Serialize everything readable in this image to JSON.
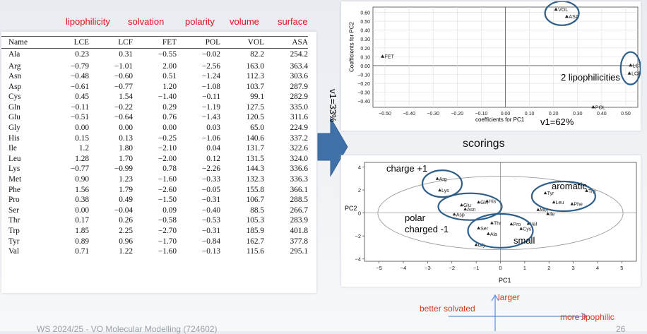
{
  "column_headers": [
    "lipophilicity",
    "solvation",
    "polarity",
    "volume",
    "surface"
  ],
  "table": {
    "columns": [
      "Name",
      "LCE",
      "LCF",
      "FET",
      "POL",
      "VOL",
      "ASA"
    ],
    "rows": [
      [
        "Ala",
        "0.23",
        "0.31",
        "−0.55",
        "−0.02",
        "82.2",
        "254.2"
      ],
      [
        "Arg",
        "−0.79",
        "−1.01",
        "2.00",
        "−2.56",
        "163.0",
        "363.4"
      ],
      [
        "Asn",
        "−0.48",
        "−0.60",
        "0.51",
        "−1.24",
        "112.3",
        "303.6"
      ],
      [
        "Asp",
        "−0.61",
        "−0.77",
        "1.20",
        "−1.08",
        "103.7",
        "287.9"
      ],
      [
        "Cys",
        "0.45",
        "1.54",
        "−1.40",
        "−0.11",
        "99.1",
        "282.9"
      ],
      [
        "Gln",
        "−0.11",
        "−0.22",
        "0.29",
        "−1.19",
        "127.5",
        "335.0"
      ],
      [
        "Glu",
        "−0.51",
        "−0.64",
        "0.76",
        "−1.43",
        "120.5",
        "311.6"
      ],
      [
        "Gly",
        "0.00",
        "0.00",
        "0.00",
        "0.03",
        "65.0",
        "224.9"
      ],
      [
        "His",
        "0.15",
        "0.13",
        "−0.25",
        "−1.06",
        "140.6",
        "337.2"
      ],
      [
        "Ile",
        "1.2",
        "1.80",
        "−2.10",
        "0.04",
        "131.7",
        "322.6"
      ],
      [
        "Leu",
        "1.28",
        "1.70",
        "−2.00",
        "0.12",
        "131.5",
        "324.0"
      ],
      [
        "Lys",
        "−0.77",
        "−0.99",
        "0.78",
        "−2.26",
        "144.3",
        "336.6"
      ],
      [
        "Met",
        "0.90",
        "1.23",
        "−1.60",
        "−0.33",
        "132.3",
        "336.3"
      ],
      [
        "Phe",
        "1.56",
        "1.79",
        "−2.60",
        "−0.05",
        "155.8",
        "366.1"
      ],
      [
        "Pro",
        "0.38",
        "0.49",
        "−1.50",
        "−0.31",
        "106.7",
        "288.5"
      ],
      [
        "Ser",
        "0.00",
        "−0.04",
        "0.09",
        "−0.40",
        "88.5",
        "266.7"
      ],
      [
        "Thr",
        "0.17",
        "0.26",
        "−0.58",
        "−0.53",
        "105.3",
        "283.9"
      ],
      [
        "Trp",
        "1.85",
        "2.25",
        "−2.70",
        "−0.31",
        "185.9",
        "401.8"
      ],
      [
        "Tyr",
        "0.89",
        "0.96",
        "−1.70",
        "−0.84",
        "162.7",
        "377.8"
      ],
      [
        "Val",
        "0.71",
        "1.22",
        "−1.60",
        "−0.13",
        "115.6",
        "295.1"
      ]
    ]
  },
  "loadings": {
    "ylabel": "Coefficients for PC2",
    "xlabel": "coefficients for PC1",
    "yticks": [
      "0.60",
      "0.50",
      "0.40",
      "0.30",
      "0.20",
      "0.10",
      "0.00",
      "−0.10",
      "−0.20",
      "−0.30",
      "−0.40"
    ],
    "xticks": [
      "−0.50",
      "−0.40",
      "−0.30",
      "−0.20",
      "−0.10",
      "0.00",
      "0.10",
      "0.20",
      "0.30",
      "0.40",
      "0.50"
    ],
    "points": [
      {
        "label": "VOL",
        "x": 0.21,
        "y": 0.635
      },
      {
        "label": "ASA",
        "x": 0.255,
        "y": 0.555
      },
      {
        "label": "FET",
        "x": -0.51,
        "y": 0.105
      },
      {
        "label": "LCE",
        "x": 0.52,
        "y": 0.005
      },
      {
        "label": "LCF",
        "x": 0.515,
        "y": -0.085
      },
      {
        "label": "POL",
        "x": 0.365,
        "y": -0.465
      }
    ],
    "annotation": "2 lipophilicities",
    "v1": "v1=62%",
    "v2": "v1=33%"
  },
  "scores": {
    "title": "scorings",
    "ylabel": "PC2",
    "xlabel": "PC1",
    "yticks": [
      "4",
      "2",
      "0",
      "−2",
      "−4"
    ],
    "xticks": [
      "−5",
      "−4",
      "−3",
      "−2",
      "−1",
      "0",
      "1",
      "2",
      "3",
      "4",
      "5"
    ],
    "points": [
      {
        "label": "Arg",
        "x": -2.6,
        "y": 3.0
      },
      {
        "label": "Lys",
        "x": -2.5,
        "y": 2.0
      },
      {
        "label": "Glu",
        "x": -1.6,
        "y": 0.7
      },
      {
        "label": "Gln",
        "x": -0.9,
        "y": 0.95
      },
      {
        "label": "His",
        "x": -0.55,
        "y": 1.05
      },
      {
        "label": "Asn",
        "x": -1.45,
        "y": 0.35
      },
      {
        "label": "Asp",
        "x": -1.9,
        "y": -0.1
      },
      {
        "label": "Thr",
        "x": -0.35,
        "y": -0.85
      },
      {
        "label": "Pro",
        "x": 0.45,
        "y": -0.95
      },
      {
        "label": "Val",
        "x": 1.15,
        "y": -0.9
      },
      {
        "label": "Ser",
        "x": -0.9,
        "y": -1.3
      },
      {
        "label": "Cys",
        "x": 0.85,
        "y": -1.35
      },
      {
        "label": "Ala",
        "x": -0.5,
        "y": -1.8
      },
      {
        "label": "Gly",
        "x": -1.0,
        "y": -2.75
      },
      {
        "label": "Tyr",
        "x": 1.85,
        "y": 1.75
      },
      {
        "label": "Trp",
        "x": 3.55,
        "y": 1.95
      },
      {
        "label": "Leu",
        "x": 2.2,
        "y": 0.95
      },
      {
        "label": "Phe",
        "x": 2.95,
        "y": 0.8
      },
      {
        "label": "Met",
        "x": 1.55,
        "y": 0.3
      },
      {
        "label": "Ile",
        "x": 1.95,
        "y": -0.05
      }
    ],
    "annotations": {
      "charge": "charge +1",
      "aromatic": "aromatic",
      "polar": "polar",
      "charged": "charged -1",
      "small": "small"
    }
  },
  "axes_labels": {
    "larger": "larger",
    "better_solvated": "better solvated",
    "more_lipophilic": "more lipophilic"
  },
  "footer": {
    "course": "WS 2024/25 - VO Molecular Modelling (724602)",
    "page": "26"
  },
  "colors": {
    "red": "#e1131b",
    "circle": "#2e5f8a",
    "arrow": "#3f71a8",
    "orange": "#ce3a1e",
    "axisBlue": "#3a7bd5"
  }
}
